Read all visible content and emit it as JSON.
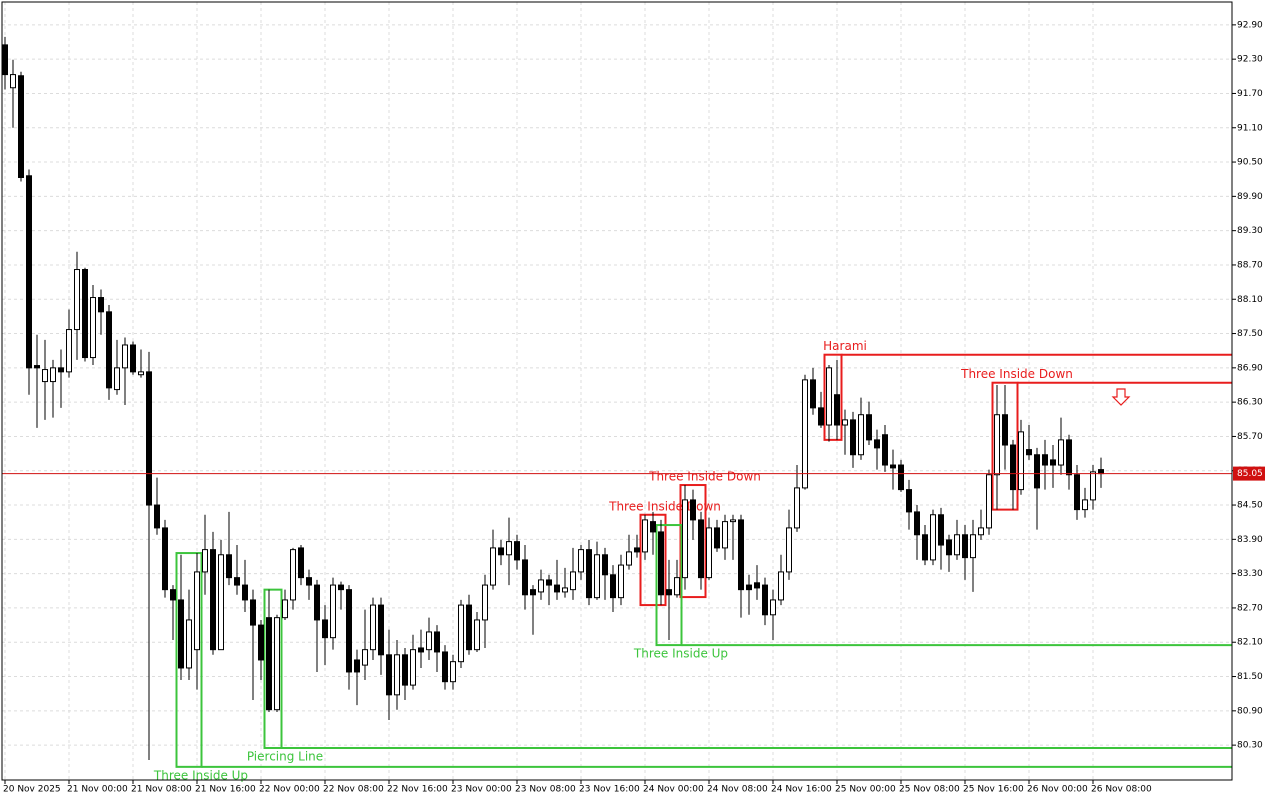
{
  "chart_data": {
    "type": "candlestick",
    "categories": [
      "20 Nov 2025",
      null,
      null,
      null,
      null,
      null,
      null,
      null,
      "21 Nov 00:00",
      null,
      null,
      null,
      null,
      null,
      null,
      null,
      "21 Nov 08:00",
      null,
      null,
      null,
      null,
      null,
      null,
      null,
      "21 Nov 16:00",
      null,
      null,
      null,
      null,
      null,
      null,
      null,
      "22 Nov 00:00",
      null,
      null,
      null,
      null,
      null,
      null,
      null,
      "22 Nov 08:00",
      null,
      null,
      null,
      null,
      null,
      null,
      null,
      "22 Nov 16:00",
      null,
      null,
      null,
      null,
      null,
      null,
      null,
      "23 Nov 00:00",
      null,
      null,
      null,
      null,
      null,
      null,
      null,
      "23 Nov 08:00",
      null,
      null,
      null,
      null,
      null,
      null,
      null,
      "23 Nov 16:00",
      null,
      null,
      null,
      null,
      null,
      null,
      null,
      "24 Nov 00:00",
      null,
      null,
      null,
      null,
      null,
      null,
      null,
      "24 Nov 08:00",
      null,
      null,
      null,
      null,
      null,
      null,
      null,
      "24 Nov 16:00",
      null,
      null,
      null,
      null,
      null,
      null,
      null,
      "25 Nov 00:00",
      null,
      null,
      null,
      null,
      null,
      null,
      null,
      "25 Nov 08:00",
      null,
      null,
      null,
      null,
      null,
      null,
      null,
      "25 Nov 16:00",
      null,
      null,
      null,
      null,
      null,
      null,
      null,
      "26 Nov 00:00",
      null,
      null,
      null,
      null,
      null,
      null,
      null,
      "26 Nov 08:00",
      null
    ],
    "open": [
      92.55,
      91.8,
      92.01,
      90.26,
      86.94,
      86.66,
      86.66,
      86.9,
      86.83,
      87.57,
      88.62,
      87.08,
      88.13,
      87.88,
      86.52,
      86.9,
      87.3,
      86.78,
      86.83,
      84.5,
      84.1,
      83.02,
      82.84,
      81.65,
      81.97,
      83.33,
      83.72,
      81.97,
      83.63,
      83.23,
      83.1,
      82.84,
      82.4,
      82.53,
      80.92,
      82.53,
      82.84,
      83.75,
      83.23,
      83.1,
      82.49,
      82.18,
      83.1,
      83.02,
      81.79,
      81.7,
      81.97,
      82.75,
      81.88,
      81.18,
      81.88,
      81.35,
      82.0,
      81.97,
      82.28,
      81.93,
      81.41,
      81.76,
      82.75,
      81.97,
      82.49,
      83.1,
      83.75,
      83.63,
      83.86,
      83.54,
      83.02,
      82.98,
      83.19,
      83.1,
      82.98,
      83.02,
      83.33,
      83.72,
      82.88,
      83.63,
      83.28,
      82.88,
      83.45,
      83.75,
      83.68,
      84.21,
      84.03,
      83.02,
      82.93,
      83.23,
      84.59,
      84.24,
      83.23,
      84.1,
      83.75,
      84.21,
      84.24,
      83.1,
      83.14,
      83.1,
      82.58,
      82.84,
      83.33,
      84.1,
      84.8,
      86.69,
      86.2,
      85.9,
      86.43,
      85.9,
      85.99,
      85.38,
      86.08,
      85.64,
      85.73,
      85.2,
      85.2,
      84.77,
      84.38,
      83.98,
      83.54,
      84.33,
      83.89,
      83.63,
      83.98,
      83.58,
      83.98,
      84.1,
      85.03,
      86.08,
      85.55,
      84.77,
      85.47,
      85.38,
      85.38,
      85.29,
      85.2,
      85.64,
      85.03,
      84.42,
      84.59,
      85.12
    ],
    "high": [
      92.69,
      92.29,
      92.08,
      90.37,
      87.48,
      87.39,
      87.04,
      87.22,
      87.92,
      88.93,
      88.65,
      88.35,
      88.27,
      88.0,
      87.39,
      87.43,
      87.36,
      87.22,
      87.18,
      84.98,
      84.24,
      83.1,
      83.63,
      83.02,
      83.66,
      84.33,
      84.03,
      83.89,
      84.38,
      83.8,
      83.54,
      83.02,
      82.49,
      83.02,
      82.58,
      83.02,
      83.75,
      83.8,
      83.37,
      83.19,
      82.75,
      83.23,
      83.16,
      83.1,
      81.97,
      82.67,
      82.88,
      82.88,
      82.32,
      82.14,
      82.0,
      82.23,
      82.32,
      82.53,
      82.4,
      82.05,
      81.88,
      82.84,
      82.93,
      82.63,
      83.28,
      84.07,
      83.89,
      84.28,
      83.98,
      83.8,
      83.1,
      83.37,
      83.28,
      83.54,
      83.4,
      83.75,
      83.8,
      83.89,
      83.86,
      83.75,
      83.45,
      83.63,
      83.98,
      83.98,
      84.33,
      84.38,
      84.24,
      83.54,
      83.54,
      84.85,
      84.77,
      84.38,
      84.28,
      84.24,
      84.33,
      84.33,
      84.33,
      83.28,
      83.45,
      83.23,
      83.02,
      83.63,
      84.42,
      85.2,
      86.78,
      86.9,
      86.48,
      86.95,
      87.04,
      86.17,
      86.13,
      86.38,
      86.31,
      85.82,
      85.9,
      85.47,
      85.29,
      84.94,
      84.5,
      84.15,
      84.42,
      84.45,
      83.98,
      84.24,
      84.15,
      84.24,
      84.42,
      85.12,
      86.6,
      86.6,
      85.64,
      85.99,
      85.9,
      85.5,
      85.64,
      85.55,
      86.03,
      85.73,
      85.2,
      84.8,
      85.2,
      85.33
    ],
    "low": [
      91.77,
      91.1,
      90.16,
      86.43,
      85.85,
      85.99,
      86.03,
      86.2,
      86.73,
      87.04,
      87.01,
      86.95,
      87.48,
      86.34,
      86.43,
      86.25,
      86.78,
      86.73,
      80.04,
      83.98,
      82.88,
      82.14,
      81.44,
      81.44,
      81.27,
      82.93,
      81.88,
      81.97,
      83.1,
      82.93,
      82.63,
      81.09,
      81.44,
      80.88,
      80.88,
      82.49,
      82.67,
      83.1,
      82.84,
      81.58,
      81.7,
      81.97,
      82.67,
      81.27,
      81.0,
      81.44,
      81.79,
      81.53,
      80.74,
      80.92,
      81.09,
      81.27,
      81.65,
      81.79,
      81.58,
      81.27,
      81.27,
      81.65,
      81.88,
      81.93,
      82.0,
      83.02,
      83.45,
      83.1,
      83.37,
      82.67,
      82.23,
      82.84,
      82.75,
      82.84,
      82.88,
      82.84,
      83.19,
      82.75,
      82.84,
      82.84,
      82.63,
      82.75,
      83.37,
      83.58,
      83.54,
      83.63,
      82.75,
      82.14,
      82.88,
      83.02,
      83.89,
      83.02,
      83.19,
      83.68,
      83.54,
      83.54,
      82.53,
      82.58,
      82.84,
      82.4,
      82.14,
      82.75,
      83.19,
      84.03,
      84.77,
      86.08,
      85.85,
      85.61,
      85.64,
      85.38,
      85.15,
      85.29,
      85.55,
      85.12,
      85.08,
      84.77,
      84.73,
      84.07,
      83.54,
      83.45,
      83.45,
      83.37,
      83.33,
      83.54,
      83.19,
      82.98,
      83.89,
      83.98,
      84.42,
      85.12,
      84.42,
      84.68,
      85.29,
      84.07,
      84.77,
      84.8,
      85.03,
      84.77,
      84.24,
      84.28,
      84.42,
      84.8
    ],
    "close": [
      92.03,
      92.03,
      90.23,
      86.9,
      86.9,
      86.87,
      86.9,
      86.83,
      87.57,
      88.62,
      87.08,
      88.13,
      87.88,
      86.55,
      86.9,
      87.3,
      86.83,
      86.83,
      84.5,
      84.1,
      83.02,
      82.84,
      81.65,
      82.49,
      83.33,
      83.72,
      81.97,
      83.63,
      83.23,
      83.1,
      82.84,
      82.4,
      81.79,
      80.92,
      82.53,
      82.84,
      83.72,
      83.23,
      83.1,
      82.49,
      82.18,
      83.1,
      83.02,
      81.58,
      81.58,
      81.97,
      82.75,
      81.88,
      81.18,
      81.88,
      81.35,
      81.97,
      81.93,
      82.28,
      81.93,
      81.41,
      81.76,
      82.75,
      81.97,
      82.49,
      83.1,
      83.75,
      83.63,
      83.86,
      83.54,
      82.93,
      82.93,
      83.19,
      83.1,
      82.98,
      83.05,
      83.33,
      83.72,
      82.88,
      83.63,
      83.28,
      82.88,
      83.45,
      83.68,
      83.68,
      84.24,
      84.03,
      82.93,
      82.93,
      83.23,
      84.59,
      84.24,
      83.23,
      84.1,
      83.75,
      84.21,
      84.24,
      83.02,
      83.02,
      83.05,
      82.58,
      82.84,
      83.33,
      84.1,
      84.8,
      86.69,
      86.2,
      85.9,
      86.9,
      85.9,
      85.99,
      85.38,
      86.08,
      85.64,
      85.5,
      85.2,
      85.15,
      84.77,
      84.38,
      83.98,
      83.54,
      84.33,
      83.8,
      83.63,
      83.98,
      83.58,
      83.98,
      84.1,
      85.03,
      86.08,
      85.55,
      84.77,
      85.78,
      85.38,
      84.8,
      85.2,
      85.2,
      85.64,
      85.03,
      84.42,
      84.59,
      85.08,
      85.05
    ],
    "bull_color": "#ffffff",
    "bear_color": "#000000",
    "line_color": "#000000",
    "ylim": [
      79.69,
      93.3
    ],
    "yticks": [
      {
        "value": 80.3,
        "label": "80.30"
      },
      {
        "value": 80.9,
        "label": "80.90"
      },
      {
        "value": 81.5,
        "label": "81.50"
      },
      {
        "value": 82.1,
        "label": "82.10"
      },
      {
        "value": 82.7,
        "label": "82.70"
      },
      {
        "value": 83.3,
        "label": "83.30"
      },
      {
        "value": 83.9,
        "label": "83.90"
      },
      {
        "value": 84.5,
        "label": "84.50"
      },
      {
        "value": 85.1,
        "label": "85.10"
      },
      {
        "value": 85.7,
        "label": "85.70"
      },
      {
        "value": 86.3,
        "label": "86.30"
      },
      {
        "value": 86.9,
        "label": "86.90"
      },
      {
        "value": 87.5,
        "label": "87.50"
      },
      {
        "value": 88.1,
        "label": "88.10"
      },
      {
        "value": 88.7,
        "label": "88.70"
      },
      {
        "value": 89.3,
        "label": "89.30"
      },
      {
        "value": 89.9,
        "label": "89.90"
      },
      {
        "value": 90.5,
        "label": "90.50"
      },
      {
        "value": 91.1,
        "label": "91.10"
      },
      {
        "value": 91.7,
        "label": "91.70"
      },
      {
        "value": 92.3,
        "label": "92.30"
      },
      {
        "value": 92.9,
        "label": "92.90"
      }
    ],
    "grid": true,
    "last_price": 85.05,
    "last_price_color": "#d01010",
    "patterns": [
      {
        "label": "Three Inside Up",
        "color": "#3cc43c",
        "start": 22,
        "end": 24,
        "high": 83.66,
        "low": 79.92,
        "direction": "up",
        "extend": true
      },
      {
        "label": "Piercing Line",
        "color": "#3cc43c",
        "start": 33,
        "end": 34,
        "high": 83.02,
        "low": 80.25,
        "direction": "up",
        "extend": true
      },
      {
        "label": "Three Inside Down",
        "color": "#e81d1d",
        "start": 80,
        "end": 82,
        "high": 84.33,
        "low": 82.75,
        "direction": "down",
        "extend": false
      },
      {
        "label": "Three Inside Down",
        "color": "#e81d1d",
        "start": 85,
        "end": 87,
        "high": 84.85,
        "low": 82.89,
        "direction": "down",
        "extend": false
      },
      {
        "label": "Three Inside Up",
        "color": "#3cc43c",
        "start": 82,
        "end": 84,
        "high": 84.15,
        "low": 82.05,
        "direction": "up",
        "extend": true
      },
      {
        "label": "Harami",
        "color": "#e81d1d",
        "start": 103,
        "end": 104,
        "high": 87.13,
        "low": 85.64,
        "direction": "down",
        "extend": true
      },
      {
        "label": "Three Inside Down",
        "color": "#e81d1d",
        "start": 124,
        "end": 126,
        "high": 86.64,
        "low": 84.42,
        "direction": "down",
        "extend": true
      }
    ]
  }
}
